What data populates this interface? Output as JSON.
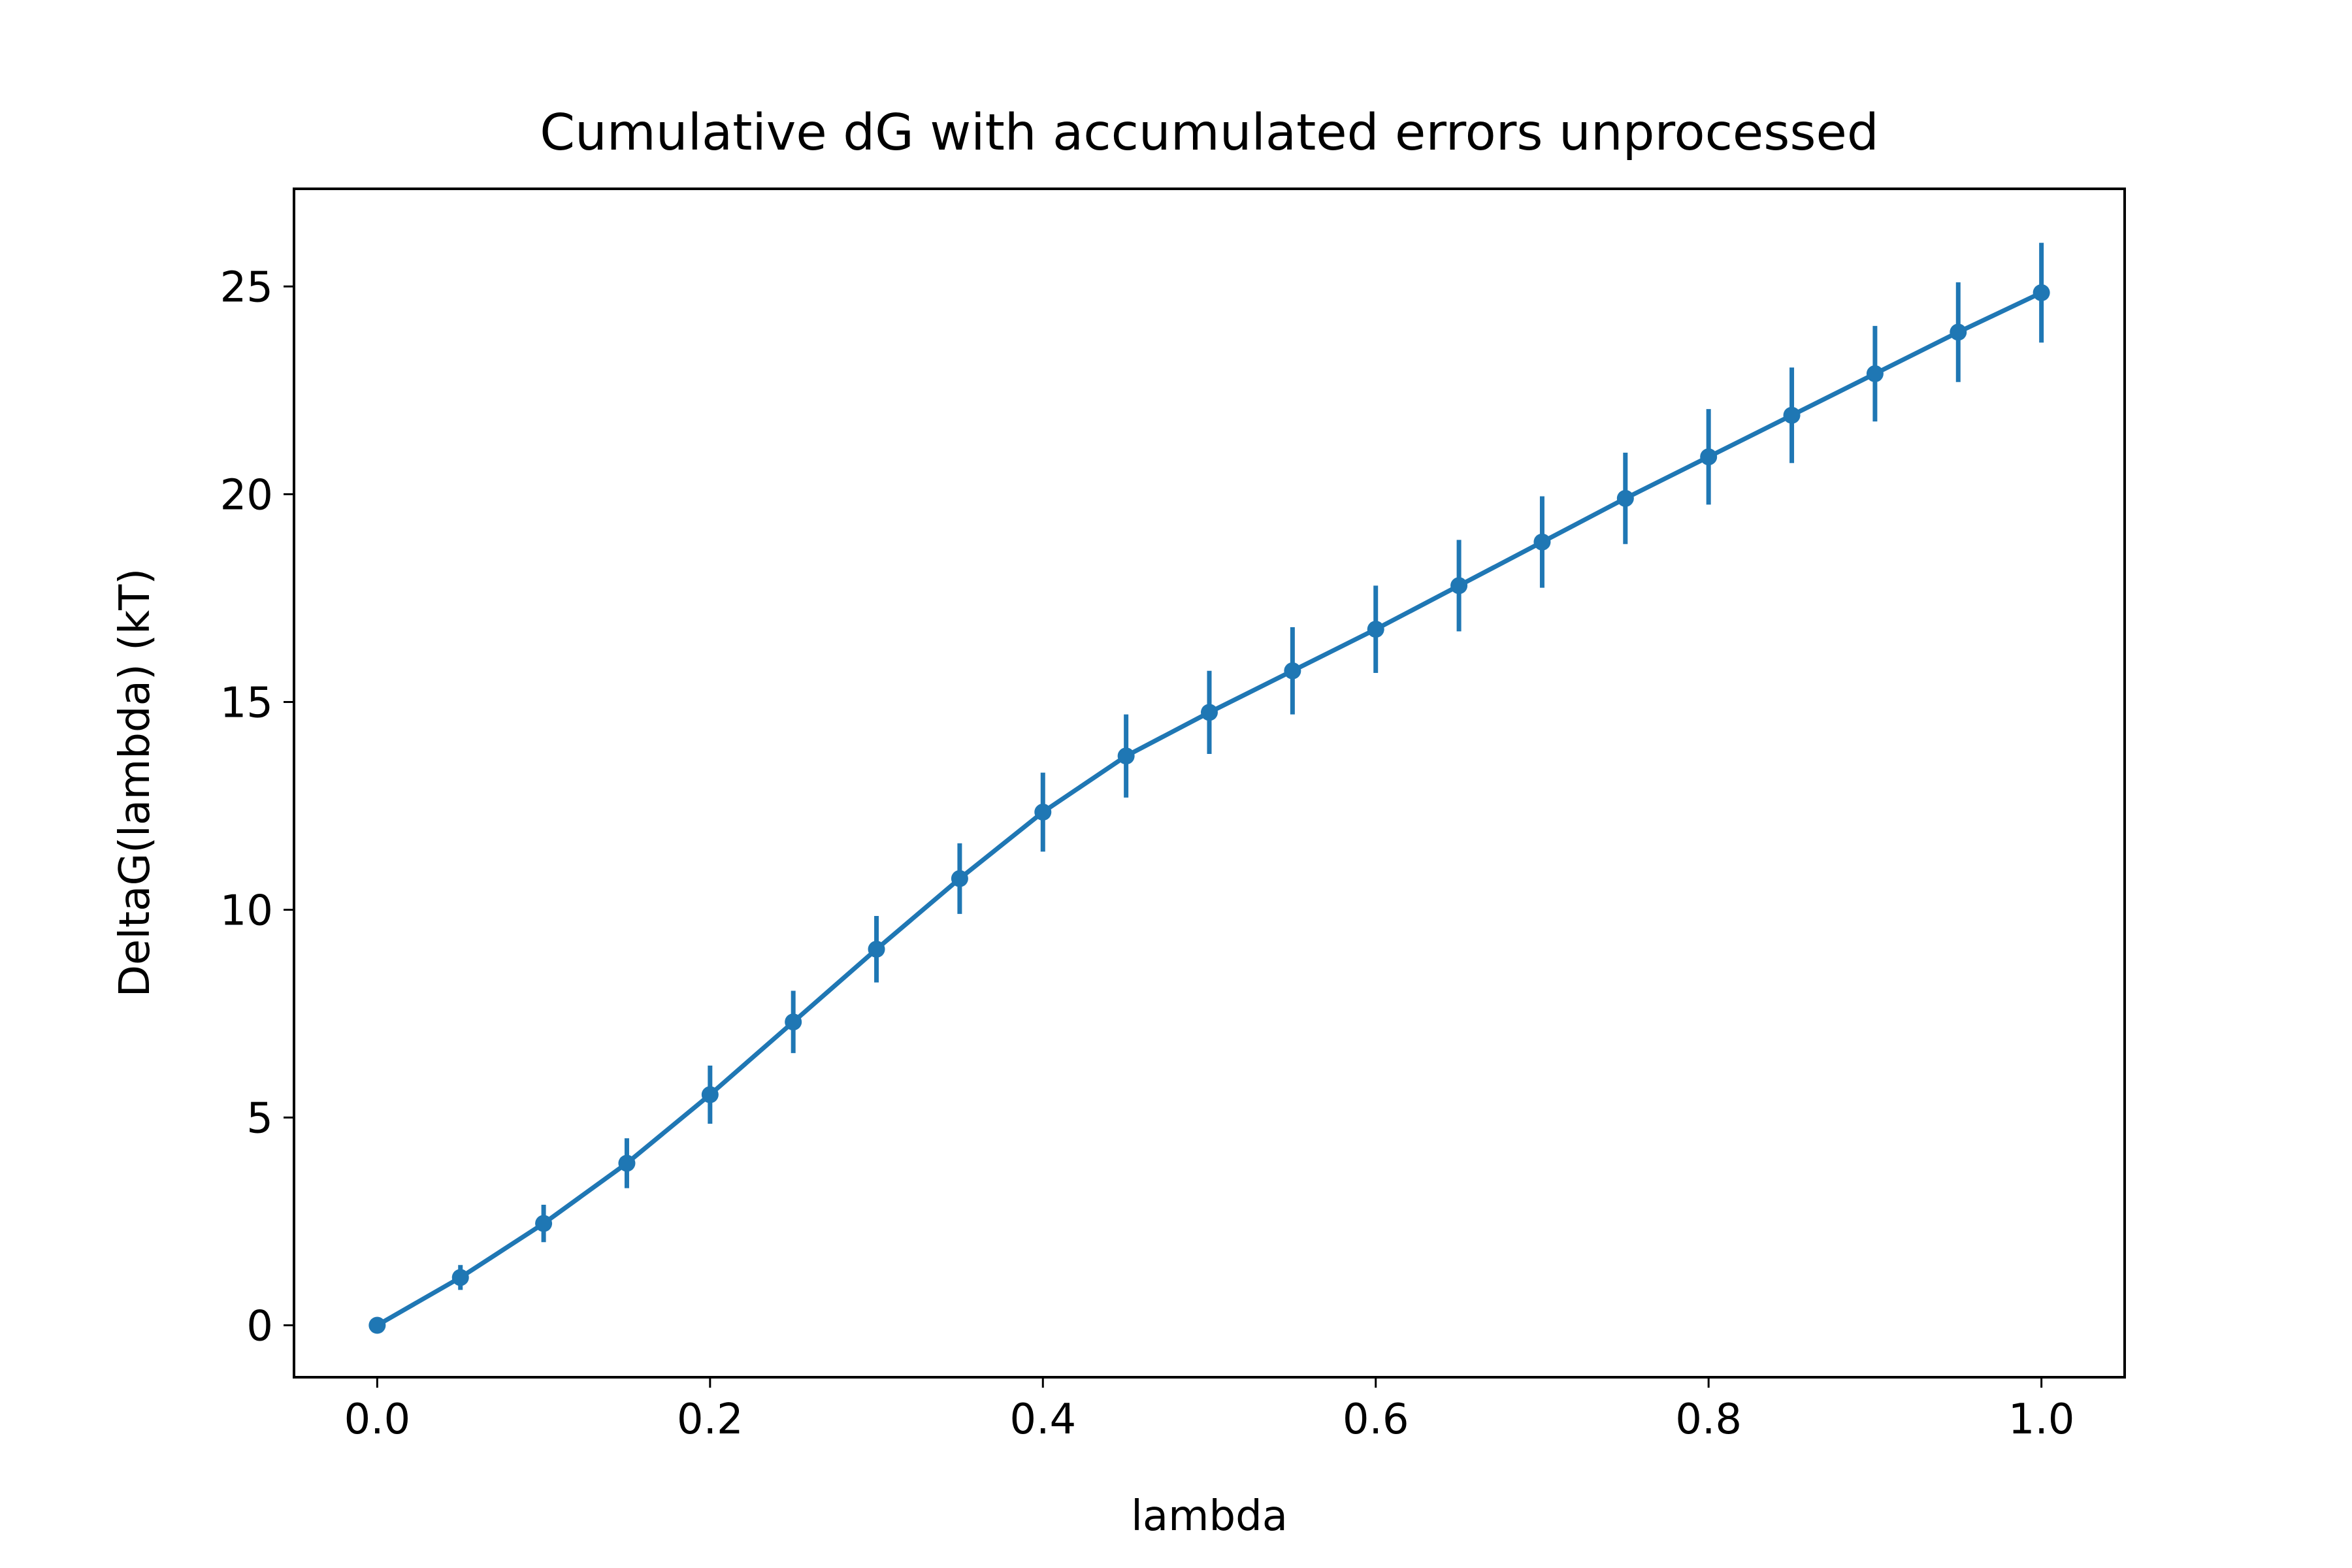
{
  "chart_data": {
    "type": "line",
    "title": "Cumulative dG with accumulated errors unprocessed",
    "xlabel": "lambda",
    "ylabel": "DeltaG(lambda) (kT)",
    "xlim": [
      -0.05,
      1.05
    ],
    "ylim": [
      -1.25,
      27.35
    ],
    "xticks": [
      0.0,
      0.2,
      0.4,
      0.6,
      0.8,
      1.0
    ],
    "xtick_labels": [
      "0.0",
      "0.2",
      "0.4",
      "0.6",
      "0.8",
      "1.0"
    ],
    "yticks": [
      0,
      5,
      10,
      15,
      20,
      25
    ],
    "ytick_labels": [
      "0",
      "5",
      "10",
      "15",
      "20",
      "25"
    ],
    "grid": false,
    "color": "#1f77b4",
    "series": [
      {
        "x": [
          0.0,
          0.05,
          0.1,
          0.15,
          0.2,
          0.25,
          0.3,
          0.35,
          0.4,
          0.45,
          0.5,
          0.55,
          0.6,
          0.65,
          0.7,
          0.75,
          0.8,
          0.85,
          0.9,
          0.95,
          1.0
        ],
        "y": [
          0.0,
          1.15,
          2.45,
          3.9,
          5.55,
          7.3,
          9.05,
          10.75,
          12.35,
          13.7,
          14.75,
          15.75,
          16.75,
          17.8,
          18.85,
          19.9,
          20.9,
          21.9,
          22.9,
          23.9,
          24.85
        ],
        "yerr": [
          0.0,
          0.3,
          0.45,
          0.6,
          0.7,
          0.75,
          0.8,
          0.85,
          0.95,
          1.0,
          1.0,
          1.05,
          1.05,
          1.1,
          1.1,
          1.1,
          1.15,
          1.15,
          1.15,
          1.2,
          1.2
        ]
      }
    ]
  }
}
